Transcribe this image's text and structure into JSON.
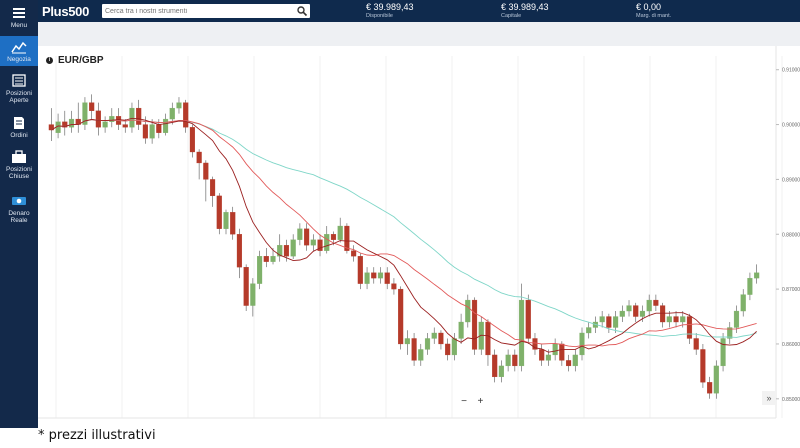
{
  "sidebar": {
    "menu_label": "Menu",
    "items": [
      {
        "label": "Negozia",
        "icon": "chart-line-icon"
      },
      {
        "label": "Posizioni\nAperte",
        "icon": "positions-open-icon"
      },
      {
        "label": "Ordini",
        "icon": "orders-icon"
      },
      {
        "label": "Posizioni\nChiuse",
        "icon": "briefcase-icon"
      },
      {
        "label": "Denaro\nReale",
        "icon": "money-icon"
      }
    ]
  },
  "header": {
    "logo": "Plus500",
    "search": {
      "placeholder": "Cerca tra i nostri strumenti"
    },
    "stats": [
      {
        "value": "€ 39.989,43",
        "label": "Disponibile"
      },
      {
        "value": "€ 39.989,43",
        "label": "Capitale"
      },
      {
        "value": "€ 0,00",
        "label": "Marg. di mant."
      }
    ]
  },
  "chart": {
    "symbol": "EUR/GBP",
    "zoom_out": "−",
    "zoom_in": "+",
    "forward": "»"
  },
  "colors": {
    "up": "#7fb16a",
    "down": "#b53a2a",
    "ma_fast": "#9b2020",
    "ma_mid": "#e25a5a",
    "ma_slow": "#7fd6c8"
  },
  "footnote": "* prezzi illustrativi",
  "chart_data": {
    "type": "candlestick",
    "y_ticks": [
      "0.91000",
      "0.90000",
      "0.89000",
      "0.88000",
      "0.87000",
      "0.86000",
      "0.85000"
    ],
    "ylim": [
      0.8465,
      0.9125
    ],
    "candles": [
      [
        0.9,
        0.899,
        0.903,
        0.897
      ],
      [
        0.8985,
        0.9005,
        0.902,
        0.8975
      ],
      [
        0.9005,
        0.8995,
        0.9025,
        0.898
      ],
      [
        0.8995,
        0.901,
        0.9025,
        0.8985
      ],
      [
        0.901,
        0.9,
        0.904,
        0.8985
      ],
      [
        0.9,
        0.904,
        0.905,
        0.899
      ],
      [
        0.904,
        0.9025,
        0.9055,
        0.901
      ],
      [
        0.9025,
        0.8995,
        0.904,
        0.898
      ],
      [
        0.8995,
        0.9005,
        0.9015,
        0.8985
      ],
      [
        0.9005,
        0.9015,
        0.903,
        0.8995
      ],
      [
        0.9015,
        0.9,
        0.903,
        0.899
      ],
      [
        0.9,
        0.8995,
        0.901,
        0.8985
      ],
      [
        0.8995,
        0.903,
        0.904,
        0.8985
      ],
      [
        0.903,
        0.9,
        0.9045,
        0.899
      ],
      [
        0.9,
        0.8975,
        0.9015,
        0.8965
      ],
      [
        0.8975,
        0.9,
        0.901,
        0.8965
      ],
      [
        0.9,
        0.8985,
        0.901,
        0.8975
      ],
      [
        0.8985,
        0.901,
        0.902,
        0.898
      ],
      [
        0.901,
        0.903,
        0.904,
        0.9
      ],
      [
        0.903,
        0.904,
        0.905,
        0.902
      ],
      [
        0.904,
        0.8995,
        0.9045,
        0.8985
      ],
      [
        0.8995,
        0.895,
        0.9,
        0.894
      ],
      [
        0.895,
        0.893,
        0.8955,
        0.89
      ],
      [
        0.893,
        0.89,
        0.8935,
        0.886
      ],
      [
        0.89,
        0.887,
        0.8905,
        0.885
      ],
      [
        0.887,
        0.881,
        0.8875,
        0.88
      ],
      [
        0.881,
        0.884,
        0.8845,
        0.88
      ],
      [
        0.884,
        0.88,
        0.885,
        0.879
      ],
      [
        0.88,
        0.874,
        0.881,
        0.872
      ],
      [
        0.874,
        0.867,
        0.8745,
        0.866
      ],
      [
        0.867,
        0.871,
        0.872,
        0.865
      ],
      [
        0.871,
        0.876,
        0.877,
        0.87
      ],
      [
        0.876,
        0.875,
        0.8775,
        0.874
      ],
      [
        0.875,
        0.876,
        0.8775,
        0.8745
      ],
      [
        0.876,
        0.878,
        0.88,
        0.875
      ],
      [
        0.878,
        0.876,
        0.879,
        0.875
      ],
      [
        0.876,
        0.879,
        0.88,
        0.8755
      ],
      [
        0.879,
        0.881,
        0.882,
        0.878
      ],
      [
        0.881,
        0.878,
        0.882,
        0.877
      ],
      [
        0.878,
        0.879,
        0.88,
        0.877
      ],
      [
        0.879,
        0.877,
        0.88,
        0.876
      ],
      [
        0.877,
        0.88,
        0.8815,
        0.8765
      ],
      [
        0.88,
        0.879,
        0.8805,
        0.878
      ],
      [
        0.879,
        0.8815,
        0.883,
        0.8785
      ],
      [
        0.8815,
        0.877,
        0.882,
        0.8765
      ],
      [
        0.877,
        0.876,
        0.878,
        0.875
      ],
      [
        0.876,
        0.871,
        0.8765,
        0.87
      ],
      [
        0.871,
        0.873,
        0.874,
        0.87
      ],
      [
        0.873,
        0.872,
        0.874,
        0.871
      ],
      [
        0.872,
        0.873,
        0.874,
        0.871
      ],
      [
        0.873,
        0.871,
        0.874,
        0.87
      ],
      [
        0.871,
        0.87,
        0.872,
        0.869
      ],
      [
        0.87,
        0.86,
        0.8705,
        0.859
      ],
      [
        0.86,
        0.861,
        0.8625,
        0.858
      ],
      [
        0.861,
        0.857,
        0.862,
        0.856
      ],
      [
        0.857,
        0.859,
        0.86,
        0.856
      ],
      [
        0.859,
        0.861,
        0.862,
        0.858
      ],
      [
        0.861,
        0.862,
        0.863,
        0.86
      ],
      [
        0.862,
        0.86,
        0.8625,
        0.859
      ],
      [
        0.86,
        0.858,
        0.861,
        0.857
      ],
      [
        0.858,
        0.861,
        0.862,
        0.857
      ],
      [
        0.861,
        0.864,
        0.8655,
        0.86
      ],
      [
        0.864,
        0.868,
        0.869,
        0.863
      ],
      [
        0.868,
        0.859,
        0.8685,
        0.858
      ],
      [
        0.859,
        0.864,
        0.865,
        0.858
      ],
      [
        0.864,
        0.858,
        0.8645,
        0.856
      ],
      [
        0.858,
        0.854,
        0.859,
        0.853
      ],
      [
        0.854,
        0.856,
        0.857,
        0.853
      ],
      [
        0.856,
        0.858,
        0.859,
        0.855
      ],
      [
        0.858,
        0.856,
        0.859,
        0.855
      ],
      [
        0.856,
        0.868,
        0.871,
        0.855
      ],
      [
        0.868,
        0.861,
        0.869,
        0.86
      ],
      [
        0.861,
        0.859,
        0.862,
        0.858
      ],
      [
        0.859,
        0.857,
        0.86,
        0.856
      ],
      [
        0.857,
        0.858,
        0.859,
        0.856
      ],
      [
        0.858,
        0.86,
        0.861,
        0.857
      ],
      [
        0.86,
        0.857,
        0.8605,
        0.856
      ],
      [
        0.857,
        0.856,
        0.858,
        0.855
      ],
      [
        0.856,
        0.858,
        0.859,
        0.855
      ],
      [
        0.858,
        0.862,
        0.863,
        0.857
      ],
      [
        0.862,
        0.863,
        0.864,
        0.861
      ],
      [
        0.863,
        0.864,
        0.865,
        0.862
      ],
      [
        0.864,
        0.865,
        0.866,
        0.863
      ],
      [
        0.865,
        0.863,
        0.8655,
        0.862
      ],
      [
        0.863,
        0.865,
        0.866,
        0.862
      ],
      [
        0.865,
        0.866,
        0.867,
        0.864
      ],
      [
        0.866,
        0.867,
        0.868,
        0.865
      ],
      [
        0.867,
        0.865,
        0.8675,
        0.864
      ],
      [
        0.865,
        0.866,
        0.867,
        0.864
      ],
      [
        0.866,
        0.868,
        0.869,
        0.865
      ],
      [
        0.868,
        0.867,
        0.869,
        0.866
      ],
      [
        0.867,
        0.864,
        0.8675,
        0.863
      ],
      [
        0.864,
        0.865,
        0.866,
        0.863
      ],
      [
        0.865,
        0.864,
        0.866,
        0.863
      ],
      [
        0.864,
        0.865,
        0.866,
        0.863
      ],
      [
        0.865,
        0.861,
        0.8655,
        0.86
      ],
      [
        0.861,
        0.859,
        0.862,
        0.858
      ],
      [
        0.859,
        0.853,
        0.86,
        0.852
      ],
      [
        0.853,
        0.851,
        0.854,
        0.85
      ],
      [
        0.851,
        0.856,
        0.857,
        0.85
      ],
      [
        0.856,
        0.861,
        0.862,
        0.855
      ],
      [
        0.861,
        0.863,
        0.864,
        0.86
      ],
      [
        0.863,
        0.866,
        0.867,
        0.862
      ],
      [
        0.866,
        0.869,
        0.87,
        0.865
      ],
      [
        0.869,
        0.872,
        0.873,
        0.868
      ],
      [
        0.872,
        0.873,
        0.8745,
        0.871
      ]
    ]
  }
}
